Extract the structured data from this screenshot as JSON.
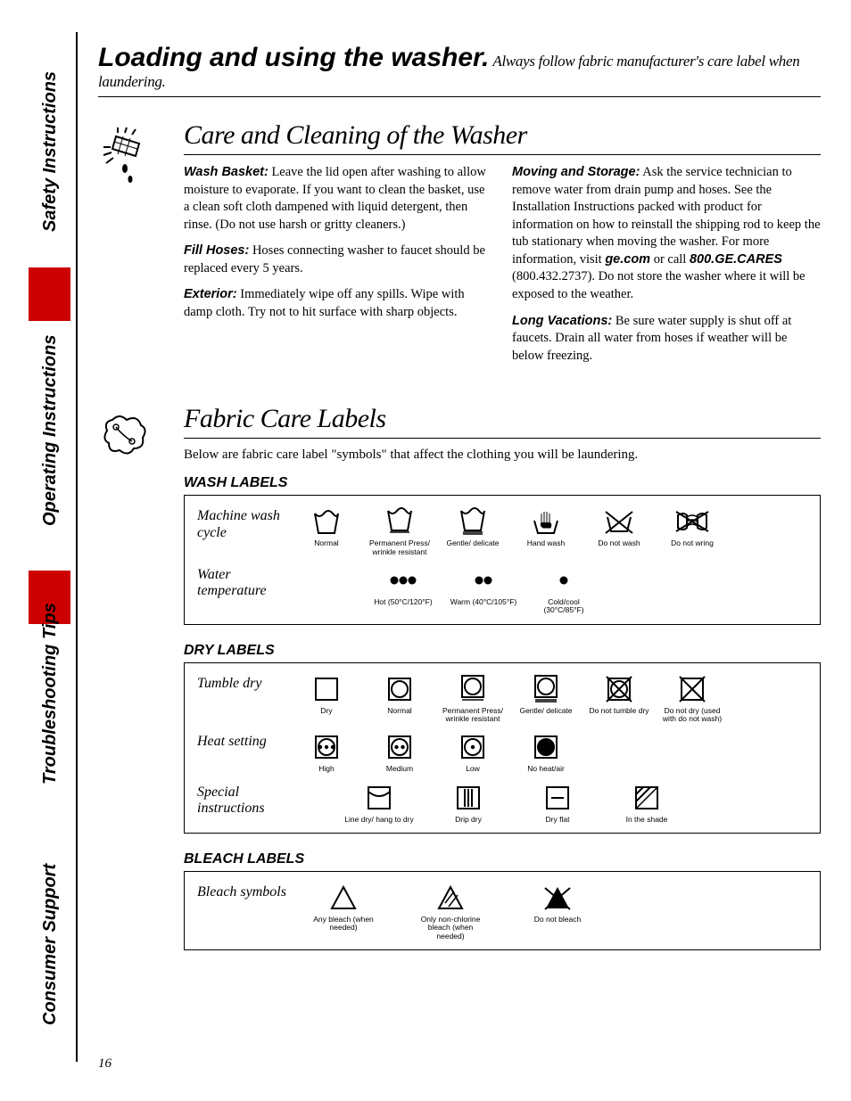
{
  "sidebar": {
    "labels": [
      "Safety Instructions",
      "Operating Instructions",
      "Troubleshooting Tips",
      "Consumer Support"
    ]
  },
  "header": {
    "title": "Loading and using the washer.",
    "subtitle": "Always follow fabric manufacturer's care label when laundering."
  },
  "care": {
    "title": "Care and Cleaning of the Washer",
    "left": [
      {
        "runin": "Wash Basket:",
        "text": " Leave the lid open after washing to allow moisture to evaporate. If you want to clean the basket, use a clean soft cloth dampened with liquid detergent, then rinse. (Do not use harsh or gritty cleaners.)"
      },
      {
        "runin": "Fill Hoses:",
        "text": " Hoses connecting washer to faucet should be replaced every 5 years."
      },
      {
        "runin": "Exterior:",
        "text": " Immediately wipe off any spills. Wipe with damp cloth. Try not to hit surface with sharp objects."
      }
    ],
    "right": [
      {
        "runin": "Moving and Storage:",
        "text": " Ask the service technician to remove water from drain pump and hoses. See the Installation Instructions packed with product for information on how to reinstall the shipping rod to keep the tub stationary when moving the washer. For more information, visit ",
        "bold1": "ge.com",
        "text2": " or call ",
        "bold2": "800.GE.CARES",
        "text3": " (800.432.2737). Do not store the washer where it will be exposed to the weather."
      },
      {
        "runin": "Long Vacations:",
        "text": " Be sure water supply is shut off at faucets. Drain all water from hoses if weather will be below freezing."
      }
    ]
  },
  "fabric": {
    "title": "Fabric Care Labels",
    "intro": "Below are fabric care label \"symbols\" that affect the clothing you will be laundering.",
    "wash": {
      "title": "WASH LABELS",
      "row1name": "Machine wash cycle",
      "row1": [
        "Normal",
        "Permanent Press/\nwrinkle resistant",
        "Gentle/\ndelicate",
        "Hand wash",
        "Do not wash",
        "Do not wring"
      ],
      "row2name": "Water temperature",
      "row2": [
        "Hot\n(50°C/120°F)",
        "Warm\n(40°C/105°F)",
        "Cold/cool\n(30°C/85°F)"
      ]
    },
    "dry": {
      "title": "DRY LABELS",
      "row1name": "Tumble dry",
      "row1": [
        "Dry",
        "Normal",
        "Permanent Press/\nwrinkle resistant",
        "Gentle/\ndelicate",
        "Do not tumble dry",
        "Do not dry\n(used with\ndo not wash)"
      ],
      "row2name": "Heat setting",
      "row2": [
        "High",
        "Medium",
        "Low",
        "No heat/air"
      ],
      "row3name": "Special instructions",
      "row3": [
        "Line dry/\nhang to dry",
        "Drip dry",
        "Dry flat",
        "In the shade"
      ]
    },
    "bleach": {
      "title": "BLEACH LABELS",
      "row1name": "Bleach symbols",
      "row1": [
        "Any bleach\n(when needed)",
        "Only non-chlorine bleach\n(when needed)",
        "Do not bleach"
      ]
    }
  },
  "page": "16"
}
